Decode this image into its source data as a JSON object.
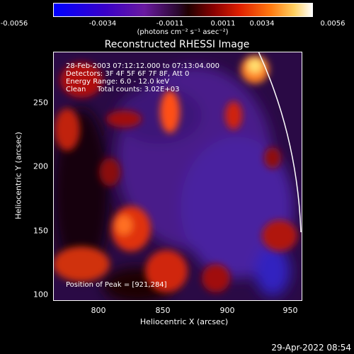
{
  "colorbar": {
    "ticks": [
      "-0.0056",
      "-0.0034",
      "-0.0011",
      "0.0011",
      "0.0034",
      "0.0056"
    ],
    "units": "(photons cm⁻² s⁻¹ asec⁻²)"
  },
  "title": "Reconstructed RHESSI Image",
  "annotations": {
    "time": "28-Feb-2003 07:12:12.000 to 07:13:04.000",
    "detectors": "Detectors: 3F 4F 5F 6F 7F 8F, Att 0",
    "energy": "Energy Range: 6.0 - 12.0 keV",
    "clean": "Clean     Total counts: 3.02E+03",
    "peak": "Position of Peak = [921,284]"
  },
  "axes": {
    "xlabel": "Heliocentric X (arcsec)",
    "ylabel": "Heliocentric Y (arcsec)",
    "xticks": [
      "800",
      "850",
      "900",
      "950"
    ],
    "yticks": [
      "250",
      "200",
      "150",
      "100"
    ]
  },
  "footer_date": "29-Apr-2022 08:54"
}
